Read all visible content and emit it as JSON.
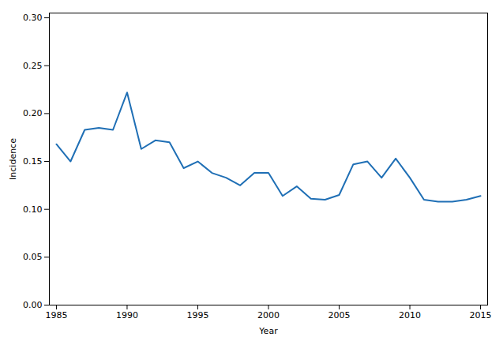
{
  "chart_data": {
    "type": "line",
    "x": [
      1985,
      1986,
      1987,
      1988,
      1989,
      1990,
      1991,
      1992,
      1993,
      1994,
      1995,
      1996,
      1997,
      1998,
      1999,
      2000,
      2001,
      2002,
      2003,
      2004,
      2005,
      2006,
      2007,
      2008,
      2009,
      2010,
      2011,
      2012,
      2013,
      2014,
      2015
    ],
    "values": [
      0.168,
      0.15,
      0.183,
      0.185,
      0.183,
      0.222,
      0.163,
      0.172,
      0.17,
      0.143,
      0.15,
      0.138,
      0.133,
      0.125,
      0.138,
      0.138,
      0.114,
      0.124,
      0.111,
      0.11,
      0.115,
      0.147,
      0.15,
      0.133,
      0.153,
      0.133,
      0.11,
      0.108,
      0.108,
      0.11,
      0.114
    ],
    "color": "#1f6fb5",
    "xlabel": "Year",
    "ylabel": "Incidence",
    "xlim": [
      1984.5,
      2015.5
    ],
    "ylim": [
      0.0,
      0.305
    ],
    "xticks": [
      1985,
      1990,
      1995,
      2000,
      2005,
      2010,
      2015
    ],
    "yticks": [
      {
        "value": 0.0,
        "label": "0.00"
      },
      {
        "value": 0.05,
        "label": "0.05"
      },
      {
        "value": 0.1,
        "label": "0.10"
      },
      {
        "value": 0.15,
        "label": "0.15"
      },
      {
        "value": 0.2,
        "label": "0.20"
      },
      {
        "value": 0.25,
        "label": "0.25"
      },
      {
        "value": 0.3,
        "label": "0.30"
      }
    ],
    "grid": false
  }
}
